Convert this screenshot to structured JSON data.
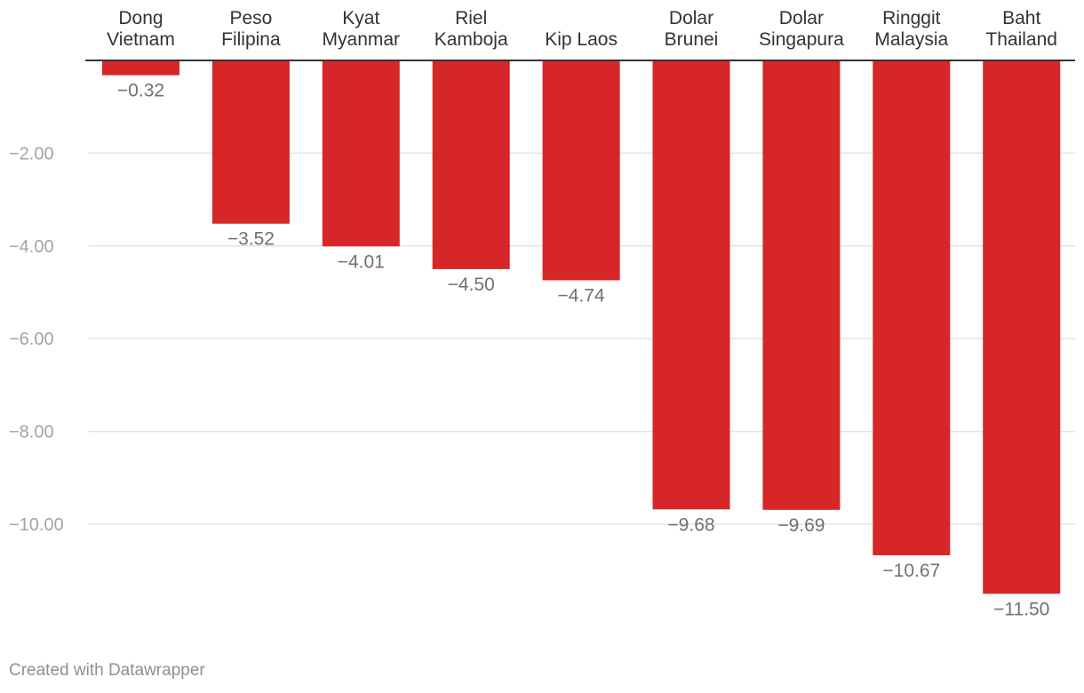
{
  "chart_data": {
    "type": "bar",
    "orientation": "vertical",
    "categories": [
      [
        "Dong",
        "Vietnam"
      ],
      [
        "Peso",
        "Filipina"
      ],
      [
        "Kyat",
        "Myanmar"
      ],
      [
        "Riel",
        "Kamboja"
      ],
      [
        "Kip Laos"
      ],
      [
        "Dolar",
        "Brunei"
      ],
      [
        "Dolar",
        "Singapura"
      ],
      [
        "Ringgit",
        "Malaysia"
      ],
      [
        "Baht",
        "Thailand"
      ]
    ],
    "values": [
      -0.32,
      -3.52,
      -4.01,
      -4.5,
      -4.74,
      -9.68,
      -9.69,
      -10.67,
      -11.5
    ],
    "value_labels": [
      "−0.32",
      "−3.52",
      "−4.01",
      "−4.50",
      "−4.74",
      "−9.68",
      "−9.69",
      "−10.67",
      "−11.50"
    ],
    "yticks": [
      -2,
      -4,
      -6,
      -8,
      -10
    ],
    "ytick_labels": [
      "−2.00",
      "−4.00",
      "−6.00",
      "−8.00",
      "−10.00"
    ],
    "ylim": [
      -11.5,
      0
    ],
    "grid": true,
    "bar_color": "#d62628",
    "title": "",
    "xlabel": "",
    "ylabel": ""
  },
  "footer": {
    "credit": "Created with Datawrapper"
  }
}
